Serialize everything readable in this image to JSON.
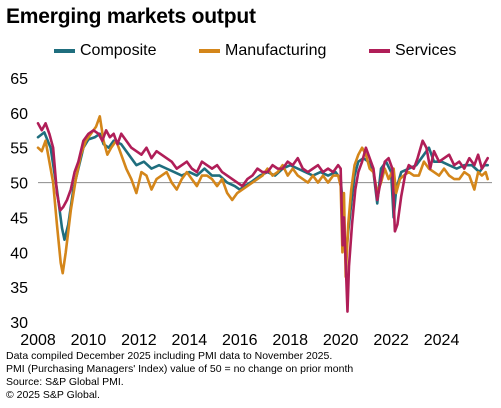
{
  "title": "Emerging markets output",
  "footnotes": [
    "Data compiled December 2025 including PMI data to November 2025.",
    "PMI (Purchasing Managers' Index) value of 50 = no change on prior month",
    "Source: S&P Global PMI.",
    "© 2025 S&P Global."
  ],
  "chart_data": {
    "type": "line",
    "title": "Emerging markets output",
    "xlabel": "",
    "ylabel": "",
    "xlim": [
      2008,
      2026
    ],
    "ylim": [
      30,
      65
    ],
    "yticks": [
      30,
      35,
      40,
      45,
      50,
      55,
      60,
      65
    ],
    "xticks": [
      2008,
      2010,
      2012,
      2014,
      2016,
      2018,
      2020,
      2022,
      2024
    ],
    "reference_line": 50,
    "grid": false,
    "legend_position": "top",
    "series": [
      {
        "name": "Composite",
        "color": "#1f6e7e",
        "points": [
          [
            2008.0,
            56.5
          ],
          [
            2008.25,
            57.2
          ],
          [
            2008.5,
            55.0
          ],
          [
            2008.75,
            49.0
          ],
          [
            2008.95,
            43.5
          ],
          [
            2009.05,
            41.8
          ],
          [
            2009.2,
            44.0
          ],
          [
            2009.4,
            49.0
          ],
          [
            2009.6,
            52.0
          ],
          [
            2009.8,
            55.0
          ],
          [
            2010.0,
            56.2
          ],
          [
            2010.25,
            56.5
          ],
          [
            2010.45,
            57.0
          ],
          [
            2010.6,
            55.5
          ],
          [
            2010.8,
            55.0
          ],
          [
            2011.0,
            56.0
          ],
          [
            2011.3,
            55.5
          ],
          [
            2011.6,
            54.0
          ],
          [
            2011.9,
            52.5
          ],
          [
            2012.2,
            53.0
          ],
          [
            2012.5,
            52.0
          ],
          [
            2012.8,
            52.5
          ],
          [
            2013.1,
            52.0
          ],
          [
            2013.4,
            51.5
          ],
          [
            2013.7,
            51.0
          ],
          [
            2014.0,
            51.5
          ],
          [
            2014.3,
            51.0
          ],
          [
            2014.6,
            52.0
          ],
          [
            2014.9,
            51.0
          ],
          [
            2015.2,
            51.0
          ],
          [
            2015.5,
            50.0
          ],
          [
            2015.8,
            49.5
          ],
          [
            2016.0,
            49.0
          ],
          [
            2016.2,
            49.5
          ],
          [
            2016.5,
            50.2
          ],
          [
            2016.8,
            51.0
          ],
          [
            2017.1,
            51.5
          ],
          [
            2017.4,
            51.0
          ],
          [
            2017.7,
            52.0
          ],
          [
            2018.0,
            52.5
          ],
          [
            2018.3,
            52.0
          ],
          [
            2018.6,
            51.5
          ],
          [
            2018.9,
            51.0
          ],
          [
            2019.2,
            51.5
          ],
          [
            2019.5,
            51.0
          ],
          [
            2019.8,
            51.5
          ],
          [
            2020.0,
            50.5
          ],
          [
            2020.1,
            46.0
          ],
          [
            2020.2,
            39.0
          ],
          [
            2020.3,
            43.0
          ],
          [
            2020.42,
            47.0
          ],
          [
            2020.55,
            51.0
          ],
          [
            2020.7,
            53.0
          ],
          [
            2020.9,
            53.5
          ],
          [
            2021.1,
            53.0
          ],
          [
            2021.3,
            51.5
          ],
          [
            2021.45,
            47.0
          ],
          [
            2021.6,
            52.0
          ],
          [
            2021.8,
            53.0
          ],
          [
            2022.0,
            51.5
          ],
          [
            2022.1,
            45.0
          ],
          [
            2022.2,
            49.0
          ],
          [
            2022.4,
            51.5
          ],
          [
            2022.7,
            52.0
          ],
          [
            2023.0,
            52.5
          ],
          [
            2023.3,
            54.0
          ],
          [
            2023.5,
            55.0
          ],
          [
            2023.7,
            53.0
          ],
          [
            2024.0,
            53.0
          ],
          [
            2024.3,
            52.5
          ],
          [
            2024.6,
            52.0
          ],
          [
            2024.9,
            52.5
          ],
          [
            2025.2,
            52.5
          ],
          [
            2025.5,
            51.5
          ],
          [
            2025.7,
            52.5
          ],
          [
            2025.83,
            52.5
          ]
        ]
      },
      {
        "name": "Manufacturing",
        "color": "#d4861a",
        "points": [
          [
            2008.0,
            55.0
          ],
          [
            2008.15,
            54.5
          ],
          [
            2008.3,
            56.0
          ],
          [
            2008.45,
            53.0
          ],
          [
            2008.6,
            50.0
          ],
          [
            2008.75,
            44.0
          ],
          [
            2008.9,
            38.5
          ],
          [
            2008.98,
            37.0
          ],
          [
            2009.1,
            40.0
          ],
          [
            2009.3,
            46.0
          ],
          [
            2009.5,
            50.5
          ],
          [
            2009.7,
            54.0
          ],
          [
            2009.9,
            56.0
          ],
          [
            2010.1,
            57.0
          ],
          [
            2010.3,
            58.0
          ],
          [
            2010.45,
            59.5
          ],
          [
            2010.6,
            56.0
          ],
          [
            2010.75,
            54.0
          ],
          [
            2010.9,
            55.0
          ],
          [
            2011.1,
            56.0
          ],
          [
            2011.3,
            54.0
          ],
          [
            2011.5,
            52.0
          ],
          [
            2011.7,
            50.5
          ],
          [
            2011.9,
            48.5
          ],
          [
            2012.1,
            51.5
          ],
          [
            2012.3,
            51.0
          ],
          [
            2012.5,
            49.0
          ],
          [
            2012.7,
            50.5
          ],
          [
            2012.9,
            51.0
          ],
          [
            2013.1,
            51.5
          ],
          [
            2013.3,
            50.0
          ],
          [
            2013.5,
            49.0
          ],
          [
            2013.7,
            50.5
          ],
          [
            2013.9,
            51.5
          ],
          [
            2014.1,
            50.5
          ],
          [
            2014.3,
            49.5
          ],
          [
            2014.5,
            51.0
          ],
          [
            2014.7,
            51.0
          ],
          [
            2014.9,
            50.5
          ],
          [
            2015.1,
            49.5
          ],
          [
            2015.3,
            50.5
          ],
          [
            2015.5,
            48.5
          ],
          [
            2015.7,
            47.5
          ],
          [
            2015.9,
            48.5
          ],
          [
            2016.1,
            49.0
          ],
          [
            2016.3,
            49.5
          ],
          [
            2016.5,
            50.0
          ],
          [
            2016.7,
            50.5
          ],
          [
            2016.9,
            51.0
          ],
          [
            2017.1,
            52.0
          ],
          [
            2017.3,
            51.0
          ],
          [
            2017.5,
            51.5
          ],
          [
            2017.7,
            52.5
          ],
          [
            2017.9,
            51.0
          ],
          [
            2018.1,
            52.0
          ],
          [
            2018.3,
            51.0
          ],
          [
            2018.5,
            50.5
          ],
          [
            2018.7,
            50.0
          ],
          [
            2018.9,
            51.0
          ],
          [
            2019.1,
            50.0
          ],
          [
            2019.3,
            51.0
          ],
          [
            2019.5,
            50.0
          ],
          [
            2019.7,
            51.0
          ],
          [
            2019.9,
            51.0
          ],
          [
            2020.0,
            49.5
          ],
          [
            2020.07,
            40.0
          ],
          [
            2020.13,
            48.5
          ],
          [
            2020.2,
            36.5
          ],
          [
            2020.3,
            44.0
          ],
          [
            2020.42,
            49.0
          ],
          [
            2020.55,
            52.5
          ],
          [
            2020.7,
            54.0
          ],
          [
            2020.85,
            55.0
          ],
          [
            2021.0,
            54.0
          ],
          [
            2021.15,
            52.0
          ],
          [
            2021.3,
            51.5
          ],
          [
            2021.45,
            48.5
          ],
          [
            2021.6,
            50.0
          ],
          [
            2021.75,
            52.0
          ],
          [
            2021.9,
            50.5
          ],
          [
            2022.1,
            52.0
          ],
          [
            2022.2,
            48.5
          ],
          [
            2022.35,
            50.5
          ],
          [
            2022.5,
            51.0
          ],
          [
            2022.7,
            51.5
          ],
          [
            2022.9,
            51.0
          ],
          [
            2023.1,
            51.0
          ],
          [
            2023.3,
            53.0
          ],
          [
            2023.5,
            52.0
          ],
          [
            2023.7,
            51.5
          ],
          [
            2023.9,
            51.0
          ],
          [
            2024.1,
            52.0
          ],
          [
            2024.3,
            51.0
          ],
          [
            2024.5,
            50.5
          ],
          [
            2024.7,
            50.5
          ],
          [
            2024.9,
            51.5
          ],
          [
            2025.1,
            51.0
          ],
          [
            2025.3,
            49.0
          ],
          [
            2025.45,
            51.5
          ],
          [
            2025.6,
            51.0
          ],
          [
            2025.75,
            51.5
          ],
          [
            2025.83,
            50.5
          ]
        ]
      },
      {
        "name": "Services",
        "color": "#b01e58",
        "points": [
          [
            2008.0,
            58.5
          ],
          [
            2008.15,
            57.5
          ],
          [
            2008.3,
            58.5
          ],
          [
            2008.45,
            57.0
          ],
          [
            2008.6,
            55.0
          ],
          [
            2008.75,
            48.5
          ],
          [
            2008.88,
            46.0
          ],
          [
            2009.0,
            46.5
          ],
          [
            2009.15,
            47.5
          ],
          [
            2009.3,
            49.0
          ],
          [
            2009.45,
            51.5
          ],
          [
            2009.6,
            53.0
          ],
          [
            2009.8,
            56.0
          ],
          [
            2010.0,
            57.0
          ],
          [
            2010.2,
            57.5
          ],
          [
            2010.4,
            57.0
          ],
          [
            2010.55,
            56.0
          ],
          [
            2010.7,
            57.5
          ],
          [
            2010.85,
            56.5
          ],
          [
            2011.0,
            57.0
          ],
          [
            2011.15,
            55.5
          ],
          [
            2011.3,
            57.0
          ],
          [
            2011.5,
            56.0
          ],
          [
            2011.7,
            55.0
          ],
          [
            2011.9,
            54.5
          ],
          [
            2012.1,
            54.0
          ],
          [
            2012.3,
            55.0
          ],
          [
            2012.5,
            53.5
          ],
          [
            2012.7,
            54.5
          ],
          [
            2012.9,
            54.0
          ],
          [
            2013.1,
            53.5
          ],
          [
            2013.3,
            53.0
          ],
          [
            2013.5,
            52.0
          ],
          [
            2013.7,
            52.5
          ],
          [
            2013.9,
            53.0
          ],
          [
            2014.1,
            52.0
          ],
          [
            2014.3,
            51.5
          ],
          [
            2014.5,
            53.0
          ],
          [
            2014.7,
            52.5
          ],
          [
            2014.9,
            52.0
          ],
          [
            2015.1,
            52.5
          ],
          [
            2015.3,
            51.5
          ],
          [
            2015.5,
            51.0
          ],
          [
            2015.7,
            50.5
          ],
          [
            2015.9,
            50.0
          ],
          [
            2016.1,
            49.5
          ],
          [
            2016.3,
            50.5
          ],
          [
            2016.5,
            51.0
          ],
          [
            2016.7,
            52.0
          ],
          [
            2016.9,
            51.5
          ],
          [
            2017.1,
            51.5
          ],
          [
            2017.3,
            52.5
          ],
          [
            2017.5,
            52.0
          ],
          [
            2017.7,
            52.0
          ],
          [
            2017.9,
            53.0
          ],
          [
            2018.1,
            52.5
          ],
          [
            2018.3,
            53.5
          ],
          [
            2018.5,
            52.0
          ],
          [
            2018.7,
            51.5
          ],
          [
            2018.9,
            52.0
          ],
          [
            2019.1,
            52.5
          ],
          [
            2019.3,
            51.5
          ],
          [
            2019.5,
            52.0
          ],
          [
            2019.7,
            51.5
          ],
          [
            2019.9,
            52.5
          ],
          [
            2020.0,
            52.0
          ],
          [
            2020.08,
            41.0
          ],
          [
            2020.13,
            45.0
          ],
          [
            2020.2,
            38.5
          ],
          [
            2020.27,
            31.5
          ],
          [
            2020.33,
            38.0
          ],
          [
            2020.45,
            44.0
          ],
          [
            2020.58,
            49.0
          ],
          [
            2020.7,
            51.5
          ],
          [
            2020.85,
            53.0
          ],
          [
            2021.0,
            55.0
          ],
          [
            2021.15,
            53.5
          ],
          [
            2021.3,
            52.0
          ],
          [
            2021.45,
            47.5
          ],
          [
            2021.6,
            50.5
          ],
          [
            2021.75,
            53.0
          ],
          [
            2021.9,
            53.5
          ],
          [
            2022.05,
            52.0
          ],
          [
            2022.15,
            43.0
          ],
          [
            2022.25,
            44.0
          ],
          [
            2022.4,
            48.0
          ],
          [
            2022.55,
            51.0
          ],
          [
            2022.7,
            52.5
          ],
          [
            2022.9,
            52.0
          ],
          [
            2023.05,
            53.5
          ],
          [
            2023.25,
            56.0
          ],
          [
            2023.4,
            55.0
          ],
          [
            2023.55,
            52.0
          ],
          [
            2023.7,
            54.5
          ],
          [
            2023.9,
            53.0
          ],
          [
            2024.1,
            53.5
          ],
          [
            2024.3,
            54.0
          ],
          [
            2024.5,
            52.5
          ],
          [
            2024.7,
            53.0
          ],
          [
            2024.9,
            52.0
          ],
          [
            2025.1,
            53.5
          ],
          [
            2025.3,
            52.5
          ],
          [
            2025.45,
            54.0
          ],
          [
            2025.6,
            52.0
          ],
          [
            2025.75,
            53.0
          ],
          [
            2025.83,
            53.5
          ]
        ]
      }
    ]
  }
}
